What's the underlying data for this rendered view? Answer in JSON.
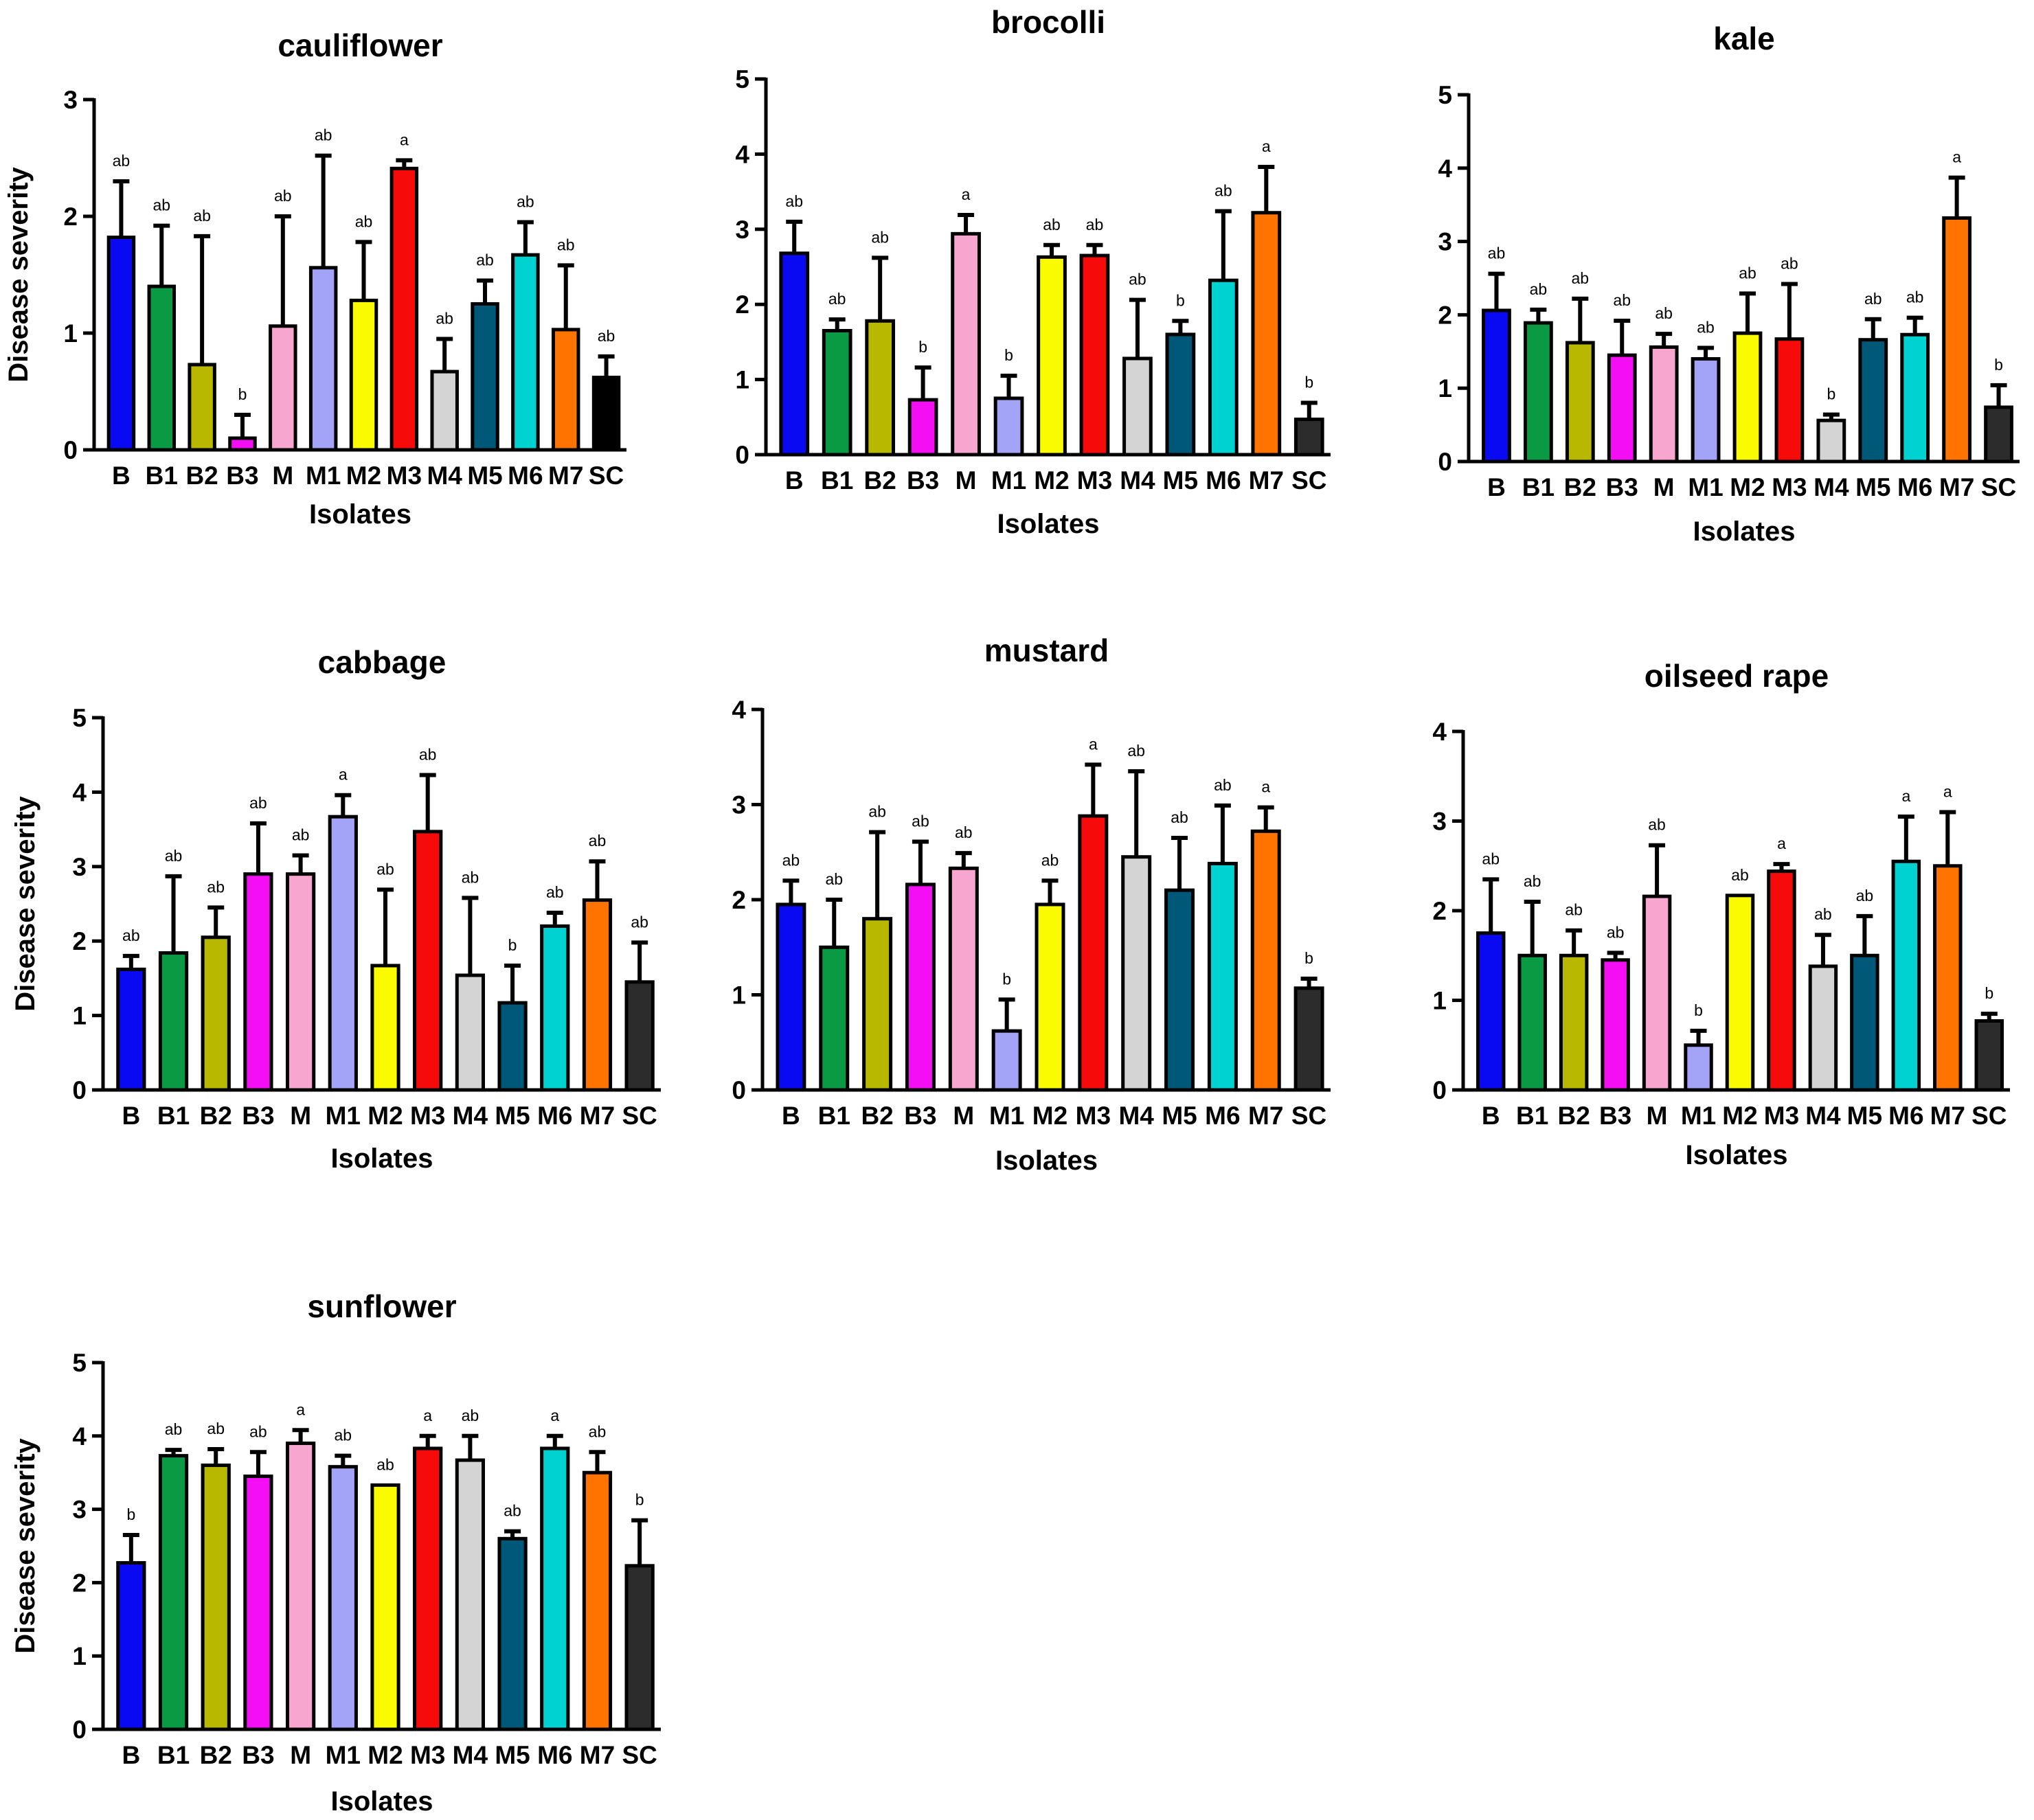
{
  "figure": {
    "categories": [
      "B",
      "B1",
      "B2",
      "B3",
      "M",
      "M1",
      "M2",
      "M3",
      "M4",
      "M5",
      "M6",
      "M7",
      "SC"
    ],
    "colors": [
      "#0a0af2",
      "#0a9a44",
      "#b8b800",
      "#f40ef4",
      "#f7a6d0",
      "#a3a3f7",
      "#fafa00",
      "#f70a0a",
      "#d4d4d4",
      "#005878",
      "#00d2d2",
      "#ff7300",
      "#2c2c2c"
    ]
  },
  "chart_data": [
    {
      "type": "bar",
      "title": "cauliflower",
      "xlabel": "Isolates",
      "ylabel": "Disease severity",
      "ylim": [
        0,
        3
      ],
      "yticks": [
        0,
        1,
        2,
        3
      ],
      "categories": [
        "B",
        "B1",
        "B2",
        "B3",
        "M",
        "M1",
        "M2",
        "M3",
        "M4",
        "M5",
        "M6",
        "M7",
        "SC"
      ],
      "values": [
        1.82,
        1.4,
        0.73,
        0.1,
        1.06,
        1.56,
        1.28,
        2.41,
        0.67,
        1.25,
        1.67,
        1.03,
        0.62
      ],
      "errors": [
        0.48,
        0.52,
        1.1,
        0.2,
        0.94,
        0.96,
        0.5,
        0.07,
        0.28,
        0.2,
        0.28,
        0.55,
        0.18
      ],
      "labels": [
        "ab",
        "ab",
        "ab",
        "b",
        "ab",
        "ab",
        "ab",
        "a",
        "ab",
        "ab",
        "ab",
        "ab",
        "ab"
      ],
      "colors": [
        "#0a0af2",
        "#0a9a44",
        "#b8b800",
        "#f40ef4",
        "#f7a6d0",
        "#a3a3f7",
        "#fafa00",
        "#f70a0a",
        "#d4d4d4",
        "#005878",
        "#00d2d2",
        "#ff7300",
        "#000000"
      ]
    },
    {
      "type": "bar",
      "title": "brocolli",
      "xlabel": "Isolates",
      "ylabel": "",
      "ylim": [
        0,
        5
      ],
      "yticks": [
        0,
        1,
        2,
        3,
        4,
        5
      ],
      "categories": [
        "B",
        "B1",
        "B2",
        "B3",
        "M",
        "M1",
        "M2",
        "M3",
        "M4",
        "M5",
        "M6",
        "M7",
        "SC"
      ],
      "values": [
        2.68,
        1.65,
        1.78,
        0.73,
        2.94,
        0.75,
        2.63,
        2.65,
        1.28,
        1.6,
        2.32,
        3.22,
        0.47
      ],
      "errors": [
        0.42,
        0.15,
        0.84,
        0.43,
        0.25,
        0.3,
        0.16,
        0.14,
        0.78,
        0.18,
        0.92,
        0.61,
        0.22
      ],
      "labels": [
        "ab",
        "ab",
        "ab",
        "b",
        "a",
        "b",
        "ab",
        "ab",
        "ab",
        "b",
        "ab",
        "a",
        "b"
      ]
    },
    {
      "type": "bar",
      "title": "kale",
      "xlabel": "Isolates",
      "ylabel": "",
      "ylim": [
        0,
        5
      ],
      "yticks": [
        0,
        1,
        2,
        3,
        4,
        5
      ],
      "categories": [
        "B",
        "B1",
        "B2",
        "B3",
        "M",
        "M1",
        "M2",
        "M3",
        "M4",
        "M5",
        "M6",
        "M7",
        "SC"
      ],
      "values": [
        2.06,
        1.89,
        1.62,
        1.45,
        1.56,
        1.4,
        1.75,
        1.67,
        0.56,
        1.66,
        1.73,
        3.32,
        0.74
      ],
      "errors": [
        0.5,
        0.18,
        0.6,
        0.47,
        0.18,
        0.15,
        0.54,
        0.75,
        0.08,
        0.28,
        0.23,
        0.55,
        0.3
      ],
      "labels": [
        "ab",
        "ab",
        "ab",
        "ab",
        "ab",
        "ab",
        "ab",
        "ab",
        "b",
        "ab",
        "ab",
        "a",
        "b"
      ]
    },
    {
      "type": "bar",
      "title": "cabbage",
      "xlabel": "Isolates",
      "ylabel": "Disease severity",
      "ylim": [
        0,
        5
      ],
      "yticks": [
        0,
        1,
        2,
        3,
        4,
        5
      ],
      "categories": [
        "B",
        "B1",
        "B2",
        "B3",
        "M",
        "M1",
        "M2",
        "M3",
        "M4",
        "M5",
        "M6",
        "M7",
        "SC"
      ],
      "values": [
        1.62,
        1.84,
        2.05,
        2.9,
        2.9,
        3.67,
        1.67,
        3.47,
        1.54,
        1.17,
        2.2,
        2.55,
        1.45
      ],
      "errors": [
        0.18,
        1.03,
        0.4,
        0.68,
        0.25,
        0.29,
        1.02,
        0.76,
        1.04,
        0.5,
        0.18,
        0.52,
        0.53
      ],
      "labels": [
        "ab",
        "ab",
        "ab",
        "ab",
        "ab",
        "a",
        "ab",
        "ab",
        "ab",
        "b",
        "ab",
        "ab",
        "ab"
      ]
    },
    {
      "type": "bar",
      "title": "mustard",
      "xlabel": "Isolates",
      "ylabel": "",
      "ylim": [
        0,
        4
      ],
      "yticks": [
        0,
        1,
        2,
        3,
        4
      ],
      "categories": [
        "B",
        "B1",
        "B2",
        "B3",
        "M",
        "M1",
        "M2",
        "M3",
        "M4",
        "M5",
        "M6",
        "M7",
        "SC"
      ],
      "values": [
        1.95,
        1.5,
        1.8,
        2.16,
        2.33,
        0.62,
        1.95,
        2.88,
        2.45,
        2.1,
        2.38,
        2.72,
        1.07
      ],
      "errors": [
        0.25,
        0.5,
        0.91,
        0.45,
        0.16,
        0.33,
        0.25,
        0.54,
        0.9,
        0.55,
        0.61,
        0.25,
        0.1
      ],
      "labels": [
        "ab",
        "ab",
        "ab",
        "ab",
        "ab",
        "b",
        "ab",
        "a",
        "ab",
        "ab",
        "ab",
        "a",
        "b"
      ]
    },
    {
      "type": "bar",
      "title": "oilseed rape",
      "xlabel": "Isolates",
      "ylabel": "",
      "ylim": [
        0,
        4
      ],
      "yticks": [
        0,
        1,
        2,
        3,
        4
      ],
      "categories": [
        "B",
        "B1",
        "B2",
        "B3",
        "M",
        "M1",
        "M2",
        "M3",
        "M4",
        "M5",
        "M6",
        "M7",
        "SC"
      ],
      "values": [
        1.75,
        1.5,
        1.5,
        1.45,
        2.16,
        0.5,
        2.17,
        2.44,
        1.38,
        1.5,
        2.55,
        2.5,
        0.77
      ],
      "errors": [
        0.6,
        0.6,
        0.28,
        0.08,
        0.57,
        0.16,
        0.0,
        0.08,
        0.35,
        0.44,
        0.5,
        0.6,
        0.08
      ],
      "labels": [
        "ab",
        "ab",
        "ab",
        "ab",
        "ab",
        "b",
        "ab",
        "a",
        "ab",
        "ab",
        "a",
        "a",
        "b"
      ]
    },
    {
      "type": "bar",
      "title": "sunflower",
      "xlabel": "Isolates",
      "ylabel": "Disease severity",
      "ylim": [
        0,
        5
      ],
      "yticks": [
        0,
        1,
        2,
        3,
        4,
        5
      ],
      "categories": [
        "B",
        "B1",
        "B2",
        "B3",
        "M",
        "M1",
        "M2",
        "M3",
        "M4",
        "M5",
        "M6",
        "M7",
        "SC"
      ],
      "values": [
        2.27,
        3.73,
        3.6,
        3.45,
        3.9,
        3.58,
        3.33,
        3.83,
        3.67,
        2.6,
        3.83,
        3.5,
        2.23
      ],
      "errors": [
        0.38,
        0.08,
        0.22,
        0.33,
        0.18,
        0.15,
        0.0,
        0.17,
        0.33,
        0.1,
        0.17,
        0.28,
        0.62
      ],
      "labels": [
        "b",
        "ab",
        "ab",
        "ab",
        "a",
        "ab",
        "ab",
        "a",
        "ab",
        "ab",
        "a",
        "ab",
        "b"
      ]
    }
  ]
}
